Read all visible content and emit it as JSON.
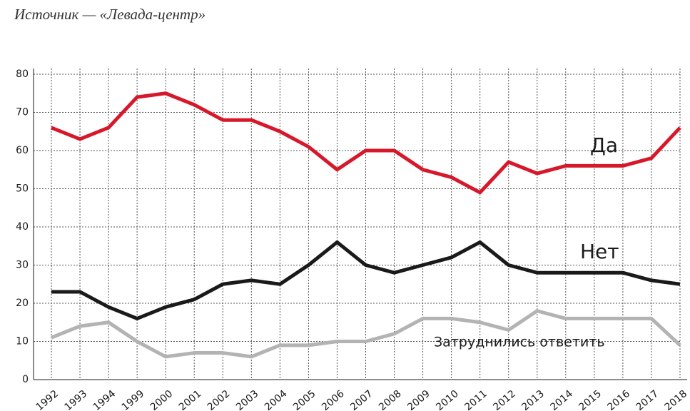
{
  "chart_data": {
    "type": "line",
    "subtitle": "Источник — «Левада-центр»",
    "categories": [
      "1992",
      "1993",
      "1994",
      "1999",
      "2000",
      "2001",
      "2002",
      "2003",
      "2004",
      "2005",
      "2006",
      "2007",
      "2008",
      "2009",
      "2010",
      "2011",
      "2012",
      "2013",
      "2014",
      "2015",
      "2016",
      "2017",
      "2018"
    ],
    "series": [
      {
        "name": "Да",
        "color": "#d7182a",
        "values": [
          66,
          63,
          66,
          74,
          75,
          72,
          68,
          68,
          65,
          61,
          55,
          60,
          60,
          55,
          53,
          49,
          57,
          54,
          56,
          56,
          56,
          58,
          66
        ]
      },
      {
        "name": "Нет",
        "color": "#1a1a1a",
        "values": [
          23,
          23,
          19,
          16,
          19,
          21,
          25,
          26,
          25,
          30,
          36,
          30,
          28,
          30,
          32,
          36,
          30,
          28,
          28,
          28,
          28,
          26,
          25
        ]
      },
      {
        "name": "Затруднились ответить",
        "color": "#b3b3b3",
        "values": [
          11,
          14,
          15,
          10,
          6,
          7,
          7,
          6,
          9,
          9,
          10,
          10,
          12,
          16,
          16,
          15,
          13,
          18,
          16,
          16,
          16,
          16,
          9
        ]
      }
    ],
    "ylim": [
      0,
      80
    ],
    "yticks": [
      0,
      10,
      20,
      30,
      40,
      50,
      60,
      70,
      80
    ],
    "grid": true
  }
}
